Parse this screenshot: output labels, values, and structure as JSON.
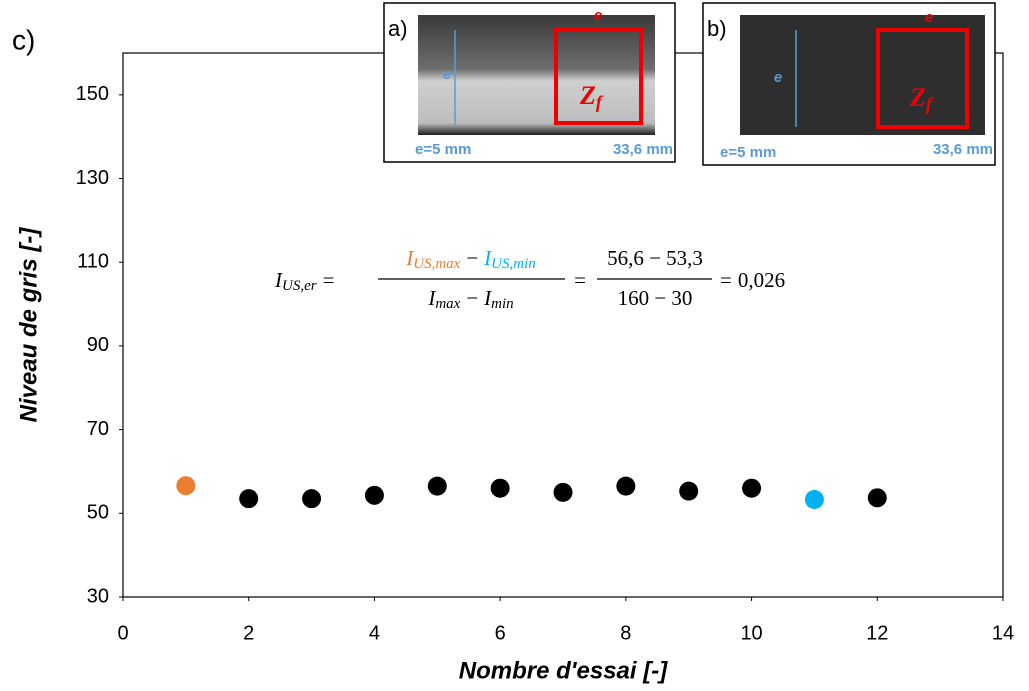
{
  "chart_data": {
    "type": "scatter",
    "panel_label": "c)",
    "x_label": "Nombre d'essai [-]",
    "y_label": "Niveau de gris [-]",
    "x": [
      1,
      2,
      3,
      4,
      5,
      6,
      7,
      8,
      9,
      10,
      11,
      12
    ],
    "values": [
      56.6,
      53.5,
      53.5,
      54.3,
      56.5,
      56.0,
      55.0,
      56.5,
      55.3,
      56.0,
      53.3,
      53.7
    ],
    "colors": [
      "#ed7d31",
      "#000000",
      "#000000",
      "#000000",
      "#000000",
      "#000000",
      "#000000",
      "#000000",
      "#000000",
      "#000000",
      "#00b0f0",
      "#000000"
    ],
    "xlim": [
      0,
      14
    ],
    "xticks": [
      0,
      2,
      4,
      6,
      8,
      10,
      12,
      14
    ],
    "ylim": [
      30,
      160
    ],
    "yticks": [
      30,
      50,
      70,
      90,
      110,
      130,
      150
    ],
    "formula": {
      "lhs": "I",
      "lhs_sub": "US,er",
      "eq": "=",
      "minus": "−",
      "num_a": "I",
      "num_a_sub": "US,max",
      "num_b": "I",
      "num_b_sub": "US,min",
      "den_a": "I",
      "den_a_sub": "max",
      "den_b": "I",
      "den_b_sub": "min",
      "num2": "56,6 − 53,3",
      "den2": "160 − 30",
      "result": "0,026"
    },
    "insets": [
      {
        "label": "a)",
        "e_top": "e",
        "e_side": "e",
        "zone": "Z",
        "zone_sub": "f",
        "thickness": "e=5 mm",
        "length": "33,6 mm"
      },
      {
        "label": "b)",
        "e_top": "e",
        "e_side": "e",
        "zone": "Z",
        "zone_sub": "f",
        "thickness": "e=5 mm",
        "length": "33,6 mm"
      }
    ]
  }
}
